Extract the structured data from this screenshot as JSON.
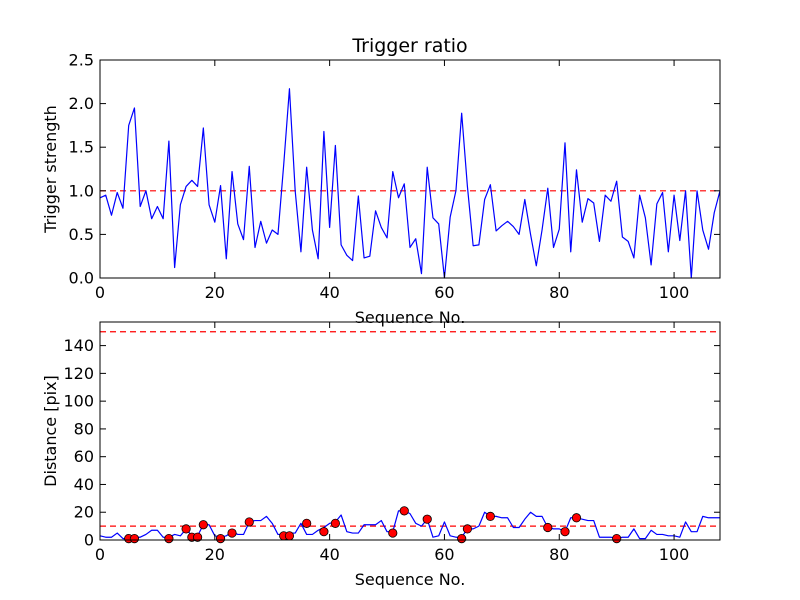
{
  "chart_data": [
    {
      "type": "line",
      "title": "Trigger ratio",
      "xlabel": "Sequence No.",
      "ylabel": "Trigger strength",
      "xlim": [
        0,
        108
      ],
      "ylim": [
        0,
        2.5
      ],
      "xticks": [
        0,
        20,
        40,
        60,
        80,
        100
      ],
      "yticks": [
        0.0,
        0.5,
        1.0,
        1.5,
        2.0,
        2.5
      ],
      "xtick_labels": [
        "0",
        "20",
        "40",
        "60",
        "80",
        "100"
      ],
      "ytick_labels": [
        "0.0",
        "0.5",
        "1.0",
        "1.5",
        "2.0",
        "2.5"
      ],
      "threshold": {
        "value": 1.0,
        "color": "#ff0000",
        "style": "dashed"
      },
      "series": [
        {
          "name": "trigger strength",
          "color": "#0000ff",
          "values": [
            0.92,
            0.95,
            0.72,
            0.98,
            0.8,
            1.75,
            1.95,
            0.82,
            1.0,
            0.68,
            0.82,
            0.68,
            1.57,
            0.12,
            0.84,
            1.05,
            1.12,
            1.05,
            1.72,
            0.84,
            0.64,
            1.06,
            0.22,
            1.22,
            0.62,
            0.44,
            1.28,
            0.35,
            0.65,
            0.4,
            0.55,
            0.5,
            1.3,
            2.17,
            1.0,
            0.3,
            1.27,
            0.55,
            0.22,
            1.68,
            0.58,
            1.52,
            0.38,
            0.26,
            0.2,
            0.94,
            0.23,
            0.25,
            0.77,
            0.58,
            0.46,
            1.22,
            0.92,
            1.08,
            0.35,
            0.45,
            0.05,
            1.27,
            0.69,
            0.62,
            0.0,
            0.7,
            1.0,
            1.89,
            1.05,
            0.37,
            0.38,
            0.9,
            1.07,
            0.54,
            0.6,
            0.65,
            0.59,
            0.5,
            0.9,
            0.5,
            0.14,
            0.55,
            1.03,
            0.35,
            0.56,
            1.55,
            0.3,
            1.24,
            0.64,
            0.91,
            0.86,
            0.42,
            0.95,
            0.88,
            1.11,
            0.47,
            0.42,
            0.23,
            0.95,
            0.69,
            0.15,
            0.85,
            0.98,
            0.3,
            0.95,
            0.43,
            1.0,
            0.0,
            1.0,
            0.55,
            0.33,
            0.75,
            1.0
          ]
        }
      ]
    },
    {
      "type": "line",
      "title": "",
      "xlabel": "Sequence No.",
      "ylabel": "Distance [pix]",
      "xlim": [
        0,
        108
      ],
      "ylim": [
        0,
        157
      ],
      "xticks": [
        0,
        20,
        40,
        60,
        80,
        100
      ],
      "yticks": [
        0,
        20,
        40,
        60,
        80,
        100,
        120,
        140
      ],
      "xtick_labels": [
        "0",
        "20",
        "40",
        "60",
        "80",
        "100"
      ],
      "ytick_labels": [
        "0",
        "20",
        "40",
        "60",
        "80",
        "100",
        "120",
        "140"
      ],
      "thresholds": [
        {
          "value": 150,
          "color": "#ff0000",
          "style": "dashed"
        },
        {
          "value": 10,
          "color": "#ff0000",
          "style": "dashed"
        }
      ],
      "series": [
        {
          "name": "distance",
          "color": "#0000ff",
          "values": [
            3,
            2,
            2,
            5,
            1,
            1,
            2,
            2,
            4,
            7,
            7,
            2,
            2,
            4,
            3,
            8,
            3,
            3,
            11,
            11,
            3,
            2,
            3,
            6,
            4,
            4,
            13,
            14,
            14,
            17,
            12,
            4,
            4,
            5,
            5,
            12,
            4,
            4,
            7,
            9,
            12,
            13,
            18,
            6,
            5,
            5,
            11,
            11,
            11,
            14,
            6,
            6,
            21,
            21,
            19,
            12,
            10,
            15,
            2,
            3,
            13,
            3,
            2,
            2,
            8,
            8,
            10,
            20,
            17,
            17,
            16,
            16,
            9,
            9,
            15,
            20,
            17,
            17,
            9,
            8,
            8,
            6,
            16,
            16,
            15,
            14,
            14,
            2,
            2,
            2,
            1,
            2,
            2,
            8,
            1,
            1,
            7,
            4,
            4,
            3,
            3,
            2,
            13,
            6,
            6,
            17,
            16,
            16,
            16
          ]
        },
        {
          "name": "triggers",
          "color": "#ff0000",
          "marker": "circle",
          "x": [
            5,
            6,
            12,
            15,
            16,
            17,
            18,
            21,
            23,
            26,
            32,
            33,
            36,
            39,
            41,
            51,
            53,
            57,
            63,
            64,
            68,
            78,
            81,
            83,
            90
          ],
          "y": [
            1,
            1,
            1,
            8,
            2,
            2,
            11,
            1,
            5,
            13,
            3,
            3,
            12,
            6,
            12,
            5,
            21,
            15,
            1,
            8,
            17,
            9,
            6,
            16,
            1
          ]
        }
      ]
    }
  ]
}
